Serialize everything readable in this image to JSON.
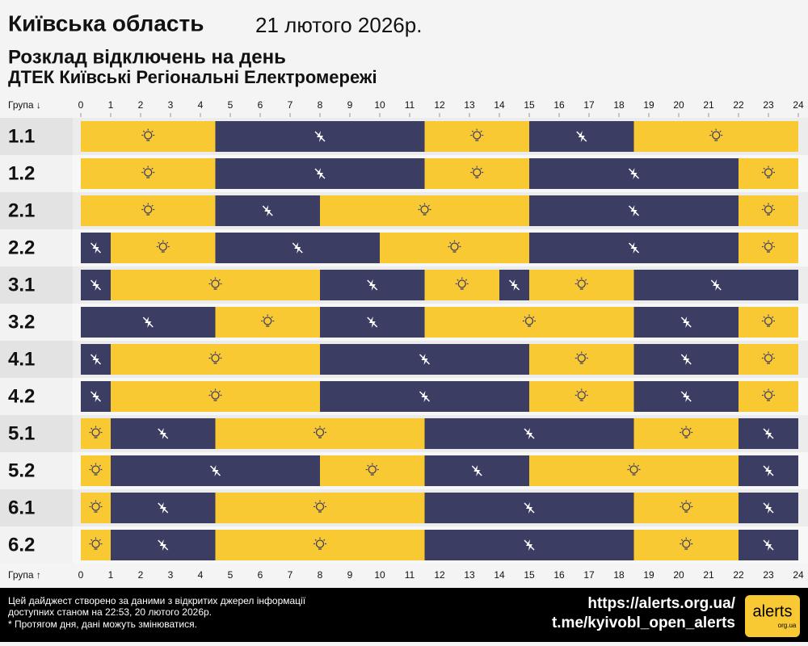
{
  "chart_data": {
    "type": "timeline",
    "title": "Київська область",
    "date": "21 лютого 2026р.",
    "subtitle": "Розклад відключень на день",
    "provider": "ДТЕК Київські Регіональні Електромережі",
    "axis_label_top": "Група ↓",
    "axis_label_bottom": "Група ↑",
    "xlim": [
      0,
      24
    ],
    "xticks": [
      0,
      1,
      2,
      3,
      4,
      5,
      6,
      7,
      8,
      9,
      10,
      11,
      12,
      13,
      14,
      15,
      16,
      17,
      18,
      19,
      20,
      21,
      22,
      23,
      24
    ],
    "on_color": "#f9c933",
    "off_color": "#3b3d63",
    "rows": [
      {
        "label": "1.1",
        "segments": [
          {
            "start": 0,
            "end": 4.5,
            "power": true
          },
          {
            "start": 4.5,
            "end": 11.5,
            "power": false
          },
          {
            "start": 11.5,
            "end": 15,
            "power": true
          },
          {
            "start": 15,
            "end": 18.5,
            "power": false
          },
          {
            "start": 18.5,
            "end": 24,
            "power": true
          }
        ]
      },
      {
        "label": "1.2",
        "segments": [
          {
            "start": 0,
            "end": 4.5,
            "power": true
          },
          {
            "start": 4.5,
            "end": 11.5,
            "power": false
          },
          {
            "start": 11.5,
            "end": 15,
            "power": true
          },
          {
            "start": 15,
            "end": 22,
            "power": false
          },
          {
            "start": 22,
            "end": 24,
            "power": true
          }
        ]
      },
      {
        "label": "2.1",
        "segments": [
          {
            "start": 0,
            "end": 4.5,
            "power": true
          },
          {
            "start": 4.5,
            "end": 8,
            "power": false
          },
          {
            "start": 8,
            "end": 15,
            "power": true
          },
          {
            "start": 15,
            "end": 22,
            "power": false
          },
          {
            "start": 22,
            "end": 24,
            "power": true
          }
        ]
      },
      {
        "label": "2.2",
        "segments": [
          {
            "start": 0,
            "end": 1,
            "power": false
          },
          {
            "start": 1,
            "end": 4.5,
            "power": true
          },
          {
            "start": 4.5,
            "end": 10,
            "power": false
          },
          {
            "start": 10,
            "end": 15,
            "power": true
          },
          {
            "start": 15,
            "end": 22,
            "power": false
          },
          {
            "start": 22,
            "end": 24,
            "power": true
          }
        ]
      },
      {
        "label": "3.1",
        "segments": [
          {
            "start": 0,
            "end": 1,
            "power": false
          },
          {
            "start": 1,
            "end": 8,
            "power": true
          },
          {
            "start": 8,
            "end": 11.5,
            "power": false
          },
          {
            "start": 11.5,
            "end": 14,
            "power": true
          },
          {
            "start": 14,
            "end": 15,
            "power": false
          },
          {
            "start": 15,
            "end": 18.5,
            "power": true
          },
          {
            "start": 18.5,
            "end": 24,
            "power": false
          }
        ]
      },
      {
        "label": "3.2",
        "segments": [
          {
            "start": 0,
            "end": 4.5,
            "power": false
          },
          {
            "start": 4.5,
            "end": 8,
            "power": true
          },
          {
            "start": 8,
            "end": 11.5,
            "power": false
          },
          {
            "start": 11.5,
            "end": 18.5,
            "power": true
          },
          {
            "start": 18.5,
            "end": 22,
            "power": false
          },
          {
            "start": 22,
            "end": 24,
            "power": true
          }
        ]
      },
      {
        "label": "4.1",
        "segments": [
          {
            "start": 0,
            "end": 1,
            "power": false
          },
          {
            "start": 1,
            "end": 8,
            "power": true
          },
          {
            "start": 8,
            "end": 15,
            "power": false
          },
          {
            "start": 15,
            "end": 18.5,
            "power": true
          },
          {
            "start": 18.5,
            "end": 22,
            "power": false
          },
          {
            "start": 22,
            "end": 24,
            "power": true
          }
        ]
      },
      {
        "label": "4.2",
        "segments": [
          {
            "start": 0,
            "end": 1,
            "power": false
          },
          {
            "start": 1,
            "end": 8,
            "power": true
          },
          {
            "start": 8,
            "end": 15,
            "power": false
          },
          {
            "start": 15,
            "end": 18.5,
            "power": true
          },
          {
            "start": 18.5,
            "end": 22,
            "power": false
          },
          {
            "start": 22,
            "end": 24,
            "power": true
          }
        ]
      },
      {
        "label": "5.1",
        "segments": [
          {
            "start": 0,
            "end": 1,
            "power": true
          },
          {
            "start": 1,
            "end": 4.5,
            "power": false
          },
          {
            "start": 4.5,
            "end": 11.5,
            "power": true
          },
          {
            "start": 11.5,
            "end": 18.5,
            "power": false
          },
          {
            "start": 18.5,
            "end": 22,
            "power": true
          },
          {
            "start": 22,
            "end": 24,
            "power": false
          }
        ]
      },
      {
        "label": "5.2",
        "segments": [
          {
            "start": 0,
            "end": 1,
            "power": true
          },
          {
            "start": 1,
            "end": 8,
            "power": false
          },
          {
            "start": 8,
            "end": 11.5,
            "power": true
          },
          {
            "start": 11.5,
            "end": 15,
            "power": false
          },
          {
            "start": 15,
            "end": 22,
            "power": true
          },
          {
            "start": 22,
            "end": 24,
            "power": false
          }
        ]
      },
      {
        "label": "6.1",
        "segments": [
          {
            "start": 0,
            "end": 1,
            "power": true
          },
          {
            "start": 1,
            "end": 4.5,
            "power": false
          },
          {
            "start": 4.5,
            "end": 11.5,
            "power": true
          },
          {
            "start": 11.5,
            "end": 18.5,
            "power": false
          },
          {
            "start": 18.5,
            "end": 22,
            "power": true
          },
          {
            "start": 22,
            "end": 24,
            "power": false
          }
        ]
      },
      {
        "label": "6.2",
        "segments": [
          {
            "start": 0,
            "end": 1,
            "power": true
          },
          {
            "start": 1,
            "end": 4.5,
            "power": false
          },
          {
            "start": 4.5,
            "end": 11.5,
            "power": true
          },
          {
            "start": 11.5,
            "end": 18.5,
            "power": false
          },
          {
            "start": 18.5,
            "end": 22,
            "power": true
          },
          {
            "start": 22,
            "end": 24,
            "power": false
          }
        ]
      }
    ],
    "footer_note": [
      "Цей дайджест створено за даними з відкритих джерел інформації",
      "доступних станом на 22:53, 20 лютого 2026р.",
      "* Протягом дня, дані можуть змінюватися."
    ],
    "links": [
      "https://alerts.org.ua/",
      "t.me/kyivobl_open_alerts"
    ],
    "logo": {
      "name": "alerts",
      "domain": "org.ua"
    }
  }
}
